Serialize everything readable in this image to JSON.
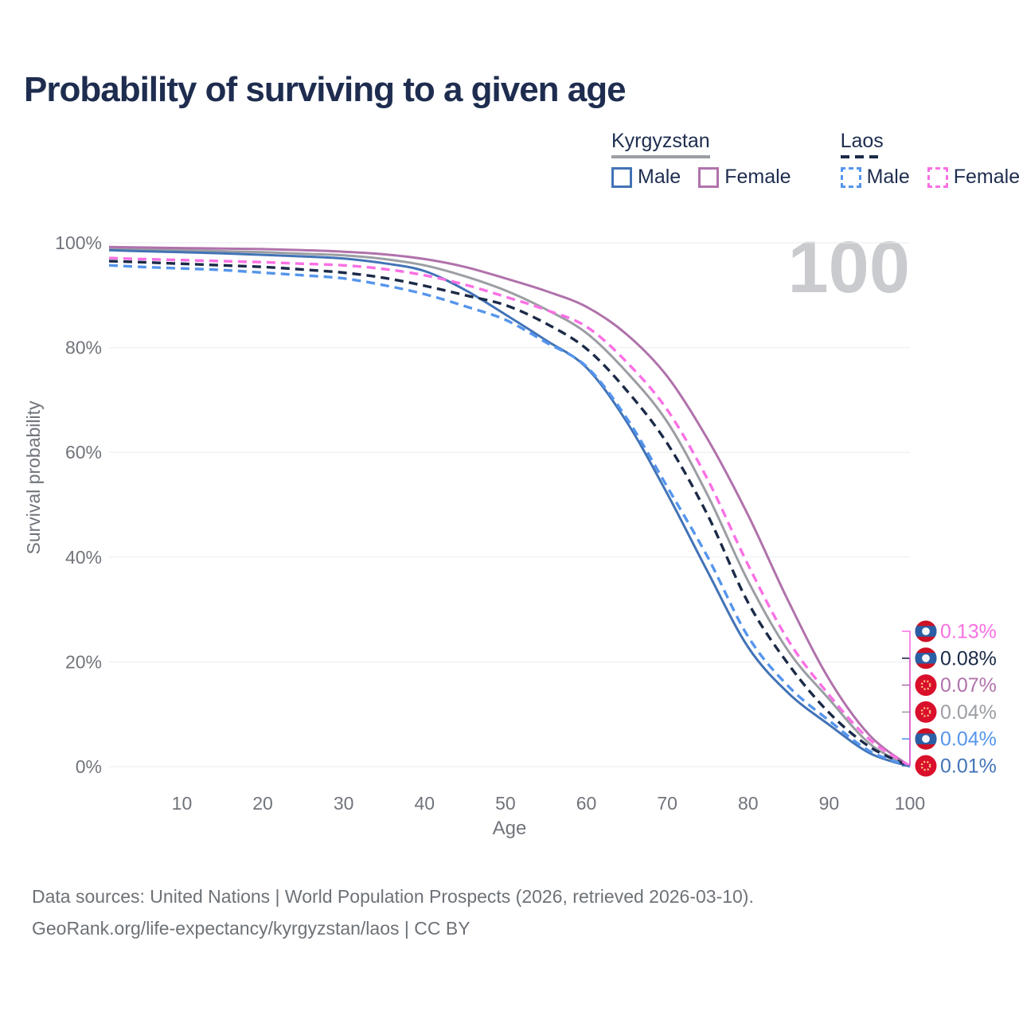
{
  "title": {
    "text": "Probability of surviving to a given age",
    "color": "#1e2d4f"
  },
  "watermark": {
    "text": "100",
    "color": "#c9cbce"
  },
  "legend": {
    "text_color": "#1e2d4f",
    "groups": [
      {
        "name": "Kyrgyzstan",
        "underline_color": "#9b9ea3",
        "underline_style": "solid",
        "items": [
          {
            "label": "Male",
            "color": "#4273b6",
            "dashed": false
          },
          {
            "label": "Female",
            "color": "#b072ab",
            "dashed": false
          }
        ]
      },
      {
        "name": "Laos",
        "underline_color": "#1b2a47",
        "underline_style": "dashed",
        "items": [
          {
            "label": "Male",
            "color": "#5595ec",
            "dashed": true
          },
          {
            "label": "Female",
            "color": "#fa70e4",
            "dashed": true
          }
        ]
      }
    ]
  },
  "axis": {
    "color": "#70747b",
    "grid_color": "#e9ebed"
  },
  "chart_data": {
    "type": "line",
    "title": "Probability of surviving to a given age",
    "xlabel": "Age",
    "ylabel": "Survival probability",
    "xlim": [
      1,
      100
    ],
    "ylim": [
      0,
      100
    ],
    "x_ticks": [
      10,
      20,
      30,
      40,
      50,
      60,
      70,
      80,
      90,
      100
    ],
    "y_ticks": [
      0,
      20,
      40,
      60,
      80,
      100
    ],
    "grid": "horizontal gridlines on",
    "legend_position": "top-right",
    "hover_age_indicator": "100",
    "x": [
      1,
      5,
      10,
      15,
      20,
      25,
      30,
      35,
      40,
      45,
      50,
      55,
      60,
      65,
      70,
      75,
      80,
      85,
      90,
      95,
      100
    ],
    "series": [
      {
        "id": "kyrgyzstan-all",
        "name": "Kyrgyzstan (both sexes)",
        "country": "Kyrgyzstan",
        "sex": "Both",
        "color": "#9b9ea3",
        "dash": "solid",
        "end_label": "0.04%",
        "values": [
          98.9,
          98.8,
          98.6,
          98.4,
          98.2,
          97.9,
          97.6,
          96.9,
          95.7,
          93.6,
          90.9,
          87.3,
          82.8,
          75.3,
          65.8,
          51.8,
          35.4,
          22.0,
          12.9,
          4.4,
          0.04
        ]
      },
      {
        "id": "kyrgyzstan-male",
        "name": "Kyrgyzstan Male",
        "country": "Kyrgyzstan",
        "sex": "Male",
        "color": "#4273b6",
        "dash": "solid",
        "end_label": "0.01%",
        "values": [
          98.6,
          98.4,
          98.2,
          98.0,
          97.7,
          97.4,
          97.0,
          96.1,
          94.6,
          91.0,
          86.3,
          81.4,
          76.2,
          65.8,
          52.1,
          37.2,
          22.8,
          14.0,
          8.0,
          2.6,
          0.01
        ]
      },
      {
        "id": "kyrgyzstan-female",
        "name": "Kyrgyzstan Female",
        "country": "Kyrgyzstan",
        "sex": "Female",
        "color": "#b072ab",
        "dash": "solid",
        "end_label": "0.07%",
        "values": [
          99.2,
          99.1,
          99.0,
          98.9,
          98.8,
          98.6,
          98.3,
          97.8,
          96.9,
          95.4,
          93.2,
          90.8,
          87.8,
          82.5,
          74.5,
          62.5,
          48.0,
          31.5,
          16.7,
          6.0,
          0.07
        ]
      },
      {
        "id": "laos-all",
        "name": "Laos (both sexes)",
        "country": "Laos",
        "sex": "Both",
        "color": "#1b2a47",
        "dash": "dashed",
        "end_label": "0.08%",
        "values": [
          96.5,
          96.3,
          96.0,
          95.7,
          95.4,
          94.9,
          94.3,
          93.3,
          91.8,
          90.0,
          88.1,
          84.6,
          79.8,
          71.8,
          61.7,
          48.0,
          31.3,
          19.5,
          10.3,
          3.8,
          0.08
        ]
      },
      {
        "id": "laos-male",
        "name": "Laos Male",
        "country": "Laos",
        "sex": "Male",
        "color": "#5595ec",
        "dash": "dashed",
        "end_label": "0.04%",
        "values": [
          95.7,
          95.4,
          95.1,
          94.8,
          94.3,
          93.8,
          93.2,
          91.9,
          90.2,
          87.9,
          85.3,
          81.0,
          76.4,
          66.5,
          53.4,
          40.0,
          24.8,
          15.3,
          8.8,
          3.0,
          0.04
        ]
      },
      {
        "id": "laos-female",
        "name": "Laos Female",
        "country": "Laos",
        "sex": "Female",
        "color": "#fa70e4",
        "dash": "dashed",
        "end_label": "0.13%",
        "values": [
          97.1,
          96.9,
          96.7,
          96.5,
          96.3,
          96.0,
          95.7,
          95.0,
          93.8,
          92.0,
          89.7,
          87.2,
          84.0,
          77.2,
          68.1,
          54.8,
          38.5,
          24.0,
          13.7,
          5.2,
          0.13
        ]
      }
    ]
  },
  "end_labels": [
    {
      "text": "0.13%",
      "flag": "laos",
      "color": "#fa70e4"
    },
    {
      "text": "0.08%",
      "flag": "laos",
      "color": "#1b2a47"
    },
    {
      "text": "0.07%",
      "flag": "kyrgyzstan",
      "color": "#b072ab"
    },
    {
      "text": "0.04%",
      "flag": "kyrgyzstan",
      "color": "#9b9ea3"
    },
    {
      "text": "0.04%",
      "flag": "laos",
      "color": "#5595ec"
    },
    {
      "text": "0.01%",
      "flag": "kyrgyzstan",
      "color": "#4273b6"
    }
  ],
  "flags": {
    "laos": {
      "red": "#ce1126",
      "blue": "#2a5fa5",
      "circle": "#f4f6fa"
    },
    "kyrgyzstan": {
      "red": "#d90f2c",
      "sun": "#ffd98f"
    }
  },
  "footer": {
    "color": "#6d7277",
    "line1": "Data sources: United Nations | World Population Prospects (2026, retrieved 2026-03-10).",
    "line2": "GeoRank.org/life-expectancy/kyrgyzstan/laos | CC BY"
  }
}
